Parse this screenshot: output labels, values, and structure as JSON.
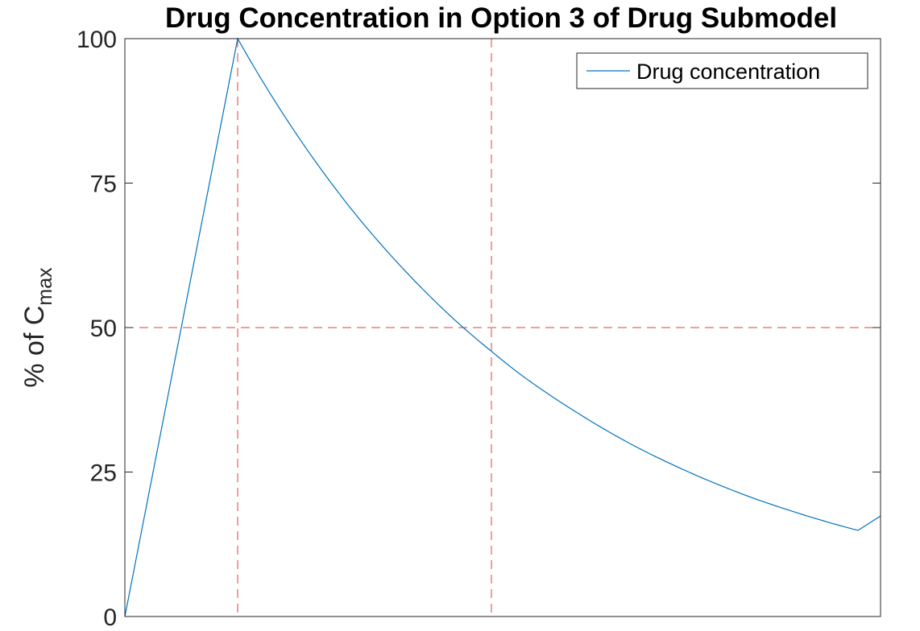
{
  "chart_data": {
    "type": "line",
    "title": "Drug Concentration in Option 3 of Drug Submodel",
    "xlabel": "",
    "ylabel": "% of C",
    "ylabel_subscript": "max",
    "xlim": [
      0,
      6.7
    ],
    "ylim": [
      0,
      100
    ],
    "y_ticks": [
      0,
      25,
      50,
      75,
      100
    ],
    "y_tick_labels": [
      "0",
      "25",
      "50",
      "75",
      "100"
    ],
    "x_tick_labels_shown": false,
    "grid": false,
    "legend": {
      "position": "top-right",
      "entries": [
        "Drug concentration"
      ]
    },
    "series": [
      {
        "name": "Drug concentration",
        "color": "#0072BD",
        "x": [
          0,
          1,
          1.25,
          1.5,
          2,
          2.5,
          3,
          3.25,
          3.5,
          4,
          4.5,
          5,
          5.5,
          6,
          6.5,
          6.7
        ],
        "y": [
          0,
          100,
          91.7,
          84.1,
          70.7,
          59.5,
          50.0,
          45.9,
          42.0,
          35.4,
          29.7,
          25.0,
          21.0,
          17.7,
          14.9,
          17.4
        ]
      }
    ],
    "reference_lines": [
      {
        "orientation": "vertical",
        "x": 1,
        "color": "#E03C3C",
        "style": "dashed"
      },
      {
        "orientation": "vertical",
        "x": 3.25,
        "color": "#E03C3C",
        "style": "dashed"
      },
      {
        "orientation": "horizontal",
        "y": 50,
        "color": "#E03C3C",
        "style": "dashed"
      }
    ]
  }
}
